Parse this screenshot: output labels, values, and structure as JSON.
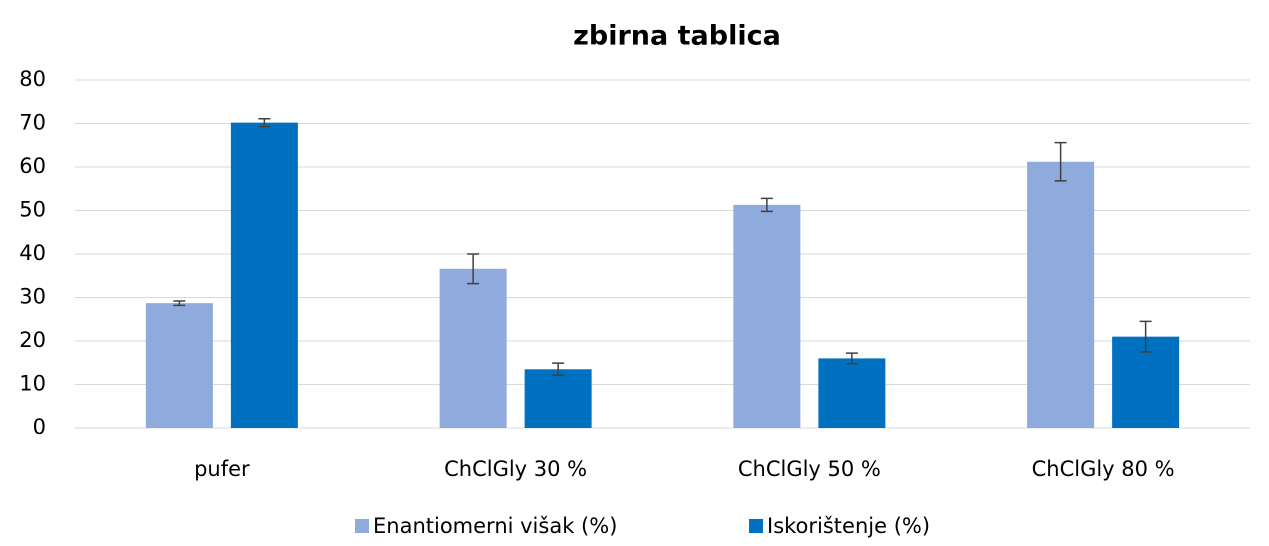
{
  "chart_data": {
    "type": "bar",
    "title": "zbirna tablica",
    "categories": [
      "pufer",
      "ChClGly 30 %",
      "ChClGly 50 %",
      "ChClGly 80 %"
    ],
    "series": [
      {
        "name": "Enantiomerni višak (%)",
        "color": "#8faadc",
        "values": [
          28.7,
          36.6,
          51.3,
          61.2
        ],
        "errors": [
          0.5,
          3.4,
          1.5,
          4.4
        ]
      },
      {
        "name": "Iskorištenje (%)",
        "color": "#0070c0",
        "values": [
          70.2,
          13.5,
          16.0,
          21.0
        ],
        "errors": [
          0.9,
          1.4,
          1.2,
          3.5
        ]
      }
    ],
    "ylim": [
      0,
      80
    ],
    "yticks": [
      0,
      10,
      20,
      30,
      40,
      50,
      60,
      70,
      80
    ],
    "grid": true,
    "legend": "bottom"
  }
}
